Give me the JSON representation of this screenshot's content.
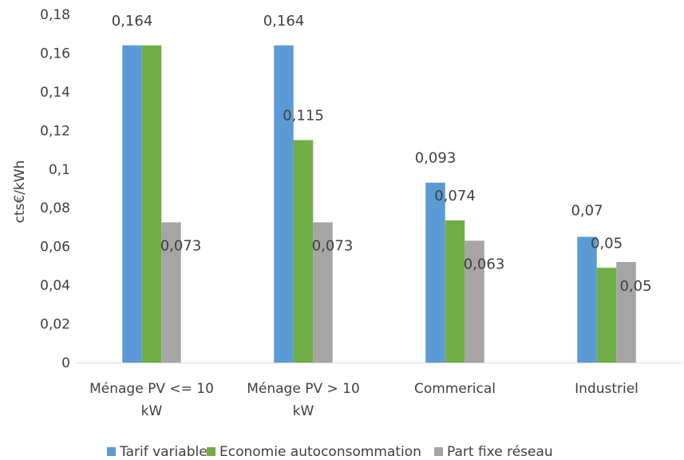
{
  "chart_data": {
    "type": "bar",
    "ylabel": "cts€/kWh",
    "ylim": [
      0,
      0.18
    ],
    "yticks": [
      "0",
      "0,02",
      "0,04",
      "0,06",
      "0,08",
      "0,1",
      "0,12",
      "0,14",
      "0,16",
      "0,18"
    ],
    "ytick_values": [
      0,
      0.02,
      0.04,
      0.06,
      0.08,
      0.1,
      0.12,
      0.14,
      0.16,
      0.18
    ],
    "categories": [
      [
        "Ménage PV <= 10",
        "kW"
      ],
      [
        "Ménage PV > 10",
        "kW"
      ],
      [
        "Commerical"
      ],
      [
        "Industriel"
      ]
    ],
    "series": [
      {
        "name": "Tarif variable",
        "color": "#5b9bd5",
        "values": [
          0.164,
          0.164,
          0.093,
          0.065
        ],
        "labels": [
          "0,164",
          "0,164",
          "0,093",
          "0,07"
        ]
      },
      {
        "name": "Economie autoconsommation",
        "color": "#70ad47",
        "values": [
          0.164,
          0.115,
          0.0735,
          0.049
        ],
        "labels": [
          "",
          "0,115",
          "0,074",
          "0,05"
        ]
      },
      {
        "name": "Part fixe réseau",
        "color": "#a5a5a5",
        "values": [
          0.0725,
          0.0725,
          0.063,
          0.052
        ],
        "labels": [
          "0,073",
          "0,073",
          "0,063",
          "0,05"
        ]
      }
    ],
    "grid": false,
    "legend": "bottom"
  }
}
